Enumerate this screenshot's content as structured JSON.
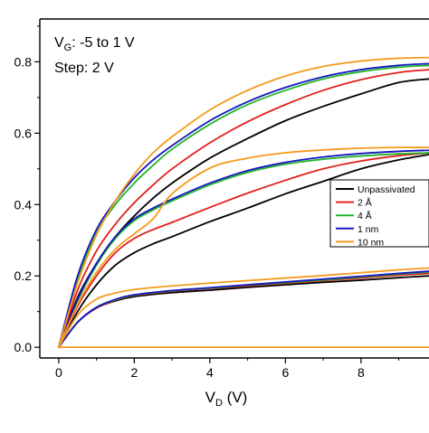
{
  "chart_data": {
    "type": "line",
    "xlabel": {
      "main": "V",
      "sub": "D",
      "unit": " (V)"
    },
    "ylabel": "",
    "xlim": [
      -0.5,
      9.8
    ],
    "ylim": [
      -0.03,
      0.92
    ],
    "x_ticks": [
      0,
      2,
      4,
      6,
      8
    ],
    "x_tick_labels": [
      "0",
      "2",
      "4",
      "6",
      "8"
    ],
    "y_ticks": [
      0.0,
      0.2,
      0.4,
      0.6,
      0.8
    ],
    "y_tick_labels": [
      "0.0",
      "0.2",
      "0.4",
      "0.6",
      "0.8"
    ],
    "grid": false,
    "legend_position": "right",
    "annotations": [
      {
        "id": "vg",
        "main": "V",
        "sub": "G",
        "rest": ": -5 to 1 V"
      },
      {
        "id": "step",
        "main": "Step: 2 V"
      }
    ],
    "colors": {
      "Unpassivated": "#000000",
      "2 Å": "#e0201c",
      "4 Å": "#22b528",
      "1 nm": "#1515c0",
      "10 nm": "#f59a1c"
    },
    "series": [
      {
        "name": "Unpassivated",
        "curves": [
          {
            "x": [
              0,
              0.5,
              1,
              1.5,
              2,
              2.5,
              3,
              4,
              5,
              6,
              7,
              8,
              9,
              9.8
            ],
            "y": [
              0,
              0.1,
              0.175,
              0.23,
              0.265,
              0.29,
              0.31,
              0.352,
              0.39,
              0.43,
              0.465,
              0.5,
              0.525,
              0.54
            ]
          },
          {
            "x": [
              0,
              0.5,
              1,
              1.5,
              2,
              2.5,
              3,
              4,
              5,
              6,
              7,
              8,
              9,
              9.8
            ],
            "y": [
              0,
              0.14,
              0.235,
              0.31,
              0.368,
              0.418,
              0.46,
              0.53,
              0.585,
              0.635,
              0.675,
              0.71,
              0.742,
              0.752
            ]
          },
          {
            "x": [
              0,
              0.5,
              1,
              1.5,
              2,
              3,
              4,
              5,
              6,
              7,
              8,
              9,
              9.8
            ],
            "y": [
              0,
              0.07,
              0.11,
              0.13,
              0.142,
              0.153,
              0.16,
              0.168,
              0.175,
              0.182,
              0.188,
              0.195,
              0.2
            ]
          }
        ]
      },
      {
        "name": "2 Å",
        "curves": [
          {
            "x": [
              0,
              0.5,
              1,
              1.5,
              2,
              2.5,
              3,
              4,
              5,
              6,
              7,
              8,
              9,
              9.8
            ],
            "y": [
              0,
              0.115,
              0.2,
              0.265,
              0.305,
              0.33,
              0.35,
              0.392,
              0.432,
              0.468,
              0.5,
              0.522,
              0.537,
              0.545
            ]
          },
          {
            "x": [
              0,
              0.5,
              1,
              1.5,
              2,
              2.5,
              3,
              4,
              5,
              6,
              7,
              8,
              9,
              9.8
            ],
            "y": [
              0,
              0.16,
              0.27,
              0.345,
              0.405,
              0.455,
              0.5,
              0.573,
              0.632,
              0.68,
              0.72,
              0.75,
              0.77,
              0.778
            ]
          },
          {
            "x": [
              0,
              0.5,
              1,
              1.5,
              2,
              3,
              4,
              5,
              6,
              7,
              8,
              9,
              9.8
            ],
            "y": [
              0,
              0.07,
              0.11,
              0.132,
              0.145,
              0.157,
              0.165,
              0.172,
              0.179,
              0.187,
              0.194,
              0.202,
              0.207
            ]
          }
        ]
      },
      {
        "name": "4 Å",
        "curves": [
          {
            "x": [
              0,
              0.5,
              1,
              1.5,
              2,
              2.5,
              3,
              4,
              5,
              6,
              7,
              8,
              9,
              9.8
            ],
            "y": [
              0,
              0.13,
              0.23,
              0.305,
              0.355,
              0.385,
              0.41,
              0.455,
              0.49,
              0.513,
              0.527,
              0.536,
              0.542,
              0.545
            ]
          },
          {
            "x": [
              0,
              0.5,
              1,
              1.5,
              2,
              2.5,
              3,
              4,
              5,
              6,
              7,
              8,
              9,
              9.8
            ],
            "y": [
              0,
              0.19,
              0.32,
              0.4,
              0.46,
              0.51,
              0.555,
              0.625,
              0.68,
              0.72,
              0.752,
              0.772,
              0.785,
              0.79
            ]
          },
          {
            "x": [
              0,
              0.5,
              1,
              1.5,
              2,
              3,
              4,
              5,
              6,
              7,
              8,
              9,
              9.8
            ],
            "y": [
              0,
              0.07,
              0.112,
              0.133,
              0.146,
              0.158,
              0.166,
              0.174,
              0.181,
              0.189,
              0.197,
              0.205,
              0.211
            ]
          }
        ]
      },
      {
        "name": "1 nm",
        "curves": [
          {
            "x": [
              0,
              0.5,
              1,
              1.5,
              2,
              2.5,
              3,
              4,
              5,
              6,
              7,
              8,
              9,
              9.8
            ],
            "y": [
              0,
              0.135,
              0.235,
              0.31,
              0.36,
              0.39,
              0.415,
              0.46,
              0.495,
              0.518,
              0.533,
              0.543,
              0.549,
              0.552
            ]
          },
          {
            "x": [
              0,
              0.5,
              1,
              1.5,
              2,
              2.5,
              3,
              4,
              5,
              6,
              7,
              8,
              9,
              9.8
            ],
            "y": [
              0,
              0.2,
              0.33,
              0.41,
              0.475,
              0.525,
              0.565,
              0.635,
              0.688,
              0.728,
              0.758,
              0.778,
              0.79,
              0.795
            ]
          },
          {
            "x": [
              0,
              0.5,
              1,
              1.5,
              2,
              3,
              4,
              5,
              6,
              7,
              8,
              9,
              9.8
            ],
            "y": [
              0,
              0.07,
              0.112,
              0.134,
              0.147,
              0.159,
              0.167,
              0.175,
              0.183,
              0.191,
              0.199,
              0.207,
              0.213
            ]
          }
        ]
      },
      {
        "name": "10 nm",
        "curves": [
          {
            "x": [
              0,
              0.5,
              1,
              1.5,
              2,
              2.5,
              3,
              4,
              5,
              6,
              7,
              8,
              9,
              9.8
            ],
            "y": [
              0,
              0.12,
              0.21,
              0.275,
              0.318,
              0.36,
              0.43,
              0.502,
              0.53,
              0.545,
              0.553,
              0.558,
              0.56,
              0.56
            ]
          },
          {
            "x": [
              0,
              0.5,
              1,
              1.5,
              2,
              2.5,
              3,
              4,
              5,
              6,
              7,
              8,
              9,
              9.8
            ],
            "y": [
              0,
              0.18,
              0.315,
              0.41,
              0.485,
              0.545,
              0.59,
              0.665,
              0.72,
              0.76,
              0.787,
              0.802,
              0.81,
              0.812
            ]
          },
          {
            "x": [
              0,
              0.5,
              1,
              1.5,
              2,
              3,
              4,
              5,
              6,
              7,
              8,
              9,
              9.8
            ],
            "y": [
              0,
              0.09,
              0.135,
              0.152,
              0.162,
              0.172,
              0.18,
              0.187,
              0.194,
              0.201,
              0.209,
              0.217,
              0.222
            ]
          },
          {
            "x": [
              0,
              9.8
            ],
            "y": [
              0,
              0
            ]
          }
        ]
      }
    ]
  }
}
